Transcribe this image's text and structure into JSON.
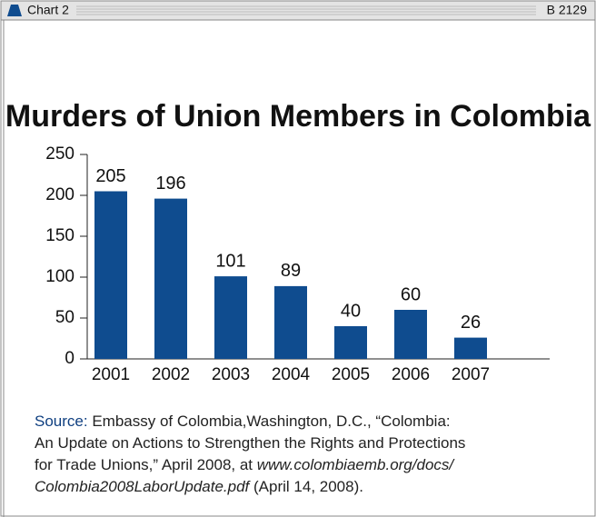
{
  "header": {
    "chart_label": "Chart 2",
    "report": "B 2129"
  },
  "chart_data": {
    "type": "bar",
    "title": "Murders of Union Members in Colombia",
    "categories": [
      "2001",
      "2002",
      "2003",
      "2004",
      "2005",
      "2006",
      "2007"
    ],
    "values": [
      205,
      196,
      101,
      89,
      40,
      60,
      26
    ],
    "color": "#0f4c8f",
    "ylim": [
      0,
      250
    ],
    "yticks": [
      0,
      50,
      100,
      150,
      200,
      250
    ],
    "grid": false
  },
  "source": {
    "label": "Source:",
    "lines": [
      "Embassy of Colombia,Washington, D.C., “Colombia:",
      "An Update on Actions to Strengthen the Rights and Protections",
      "for Trade Unions,” April 2008, at "
    ],
    "url": [
      "www.colombiaemb.org/docs/",
      "Colombia2008LaborUpdate.pdf"
    ],
    "date": " (April 14, 2008)."
  }
}
